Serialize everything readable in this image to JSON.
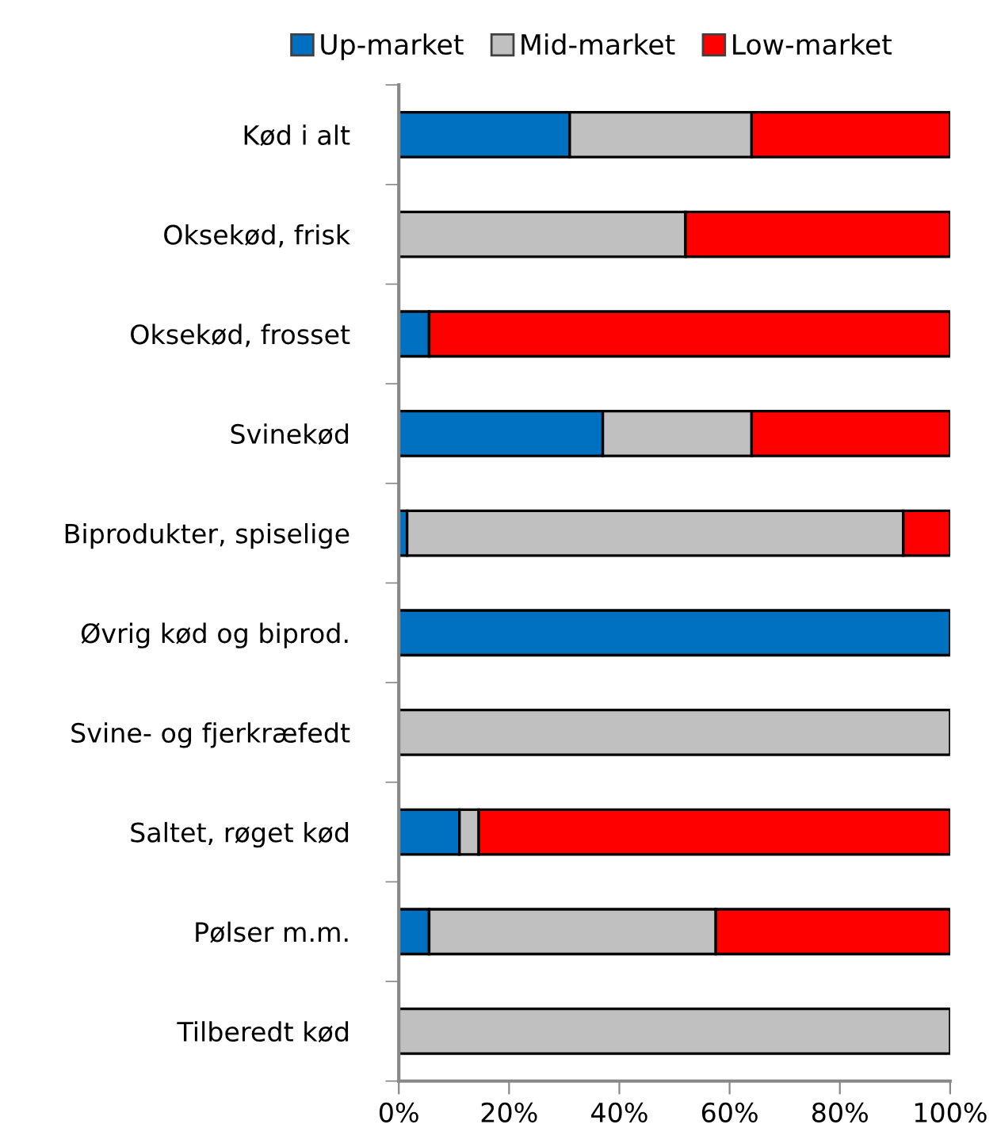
{
  "chart_data": {
    "type": "bar",
    "orientation": "horizontal",
    "stacked": true,
    "categories": [
      "Kød i alt",
      "Oksekød, frisk",
      "Oksekød, frosset",
      "Svinekød",
      "Biprodukter, spiselige",
      "Øvrig kød og biprod.",
      "Svine- og fjerkræfedt",
      "Saltet, røget kød",
      "Pølser m.m.",
      "Tilberedt kød"
    ],
    "series": [
      {
        "name": "Up-market",
        "color": "#0070c0",
        "values": [
          31,
          0,
          5.5,
          37,
          1.5,
          100,
          0,
          11,
          5.5,
          0
        ]
      },
      {
        "name": "Mid-market",
        "color": "#c0c0c0",
        "values": [
          33,
          52,
          0,
          27,
          90,
          0,
          100,
          3.5,
          52,
          100
        ]
      },
      {
        "name": "Low-market",
        "color": "#ff0000",
        "values": [
          36,
          48,
          94.5,
          36,
          8.5,
          0,
          0,
          85.5,
          42.5,
          0
        ]
      }
    ],
    "xlim": [
      0,
      100
    ],
    "xticks": [
      {
        "value": 0,
        "label": "0%"
      },
      {
        "value": 20,
        "label": "20%"
      },
      {
        "value": 40,
        "label": "40%"
      },
      {
        "value": 60,
        "label": "60%"
      },
      {
        "value": 80,
        "label": "80%"
      },
      {
        "value": 100,
        "label": "100%"
      }
    ],
    "legend": "top",
    "grid": false
  }
}
